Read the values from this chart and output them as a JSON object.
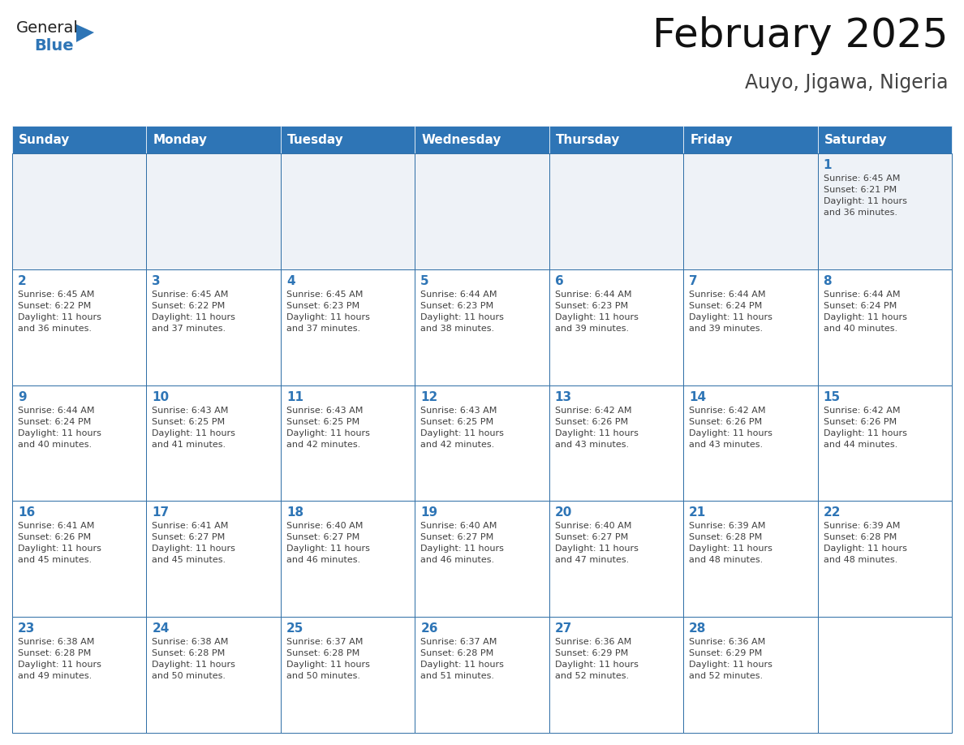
{
  "title": "February 2025",
  "subtitle": "Auyo, Jigawa, Nigeria",
  "header_bg_color": "#2E75B6",
  "header_text_color": "#FFFFFF",
  "cell_border_color": "#2E6EA6",
  "day_number_color": "#2E75B6",
  "info_text_color": "#404040",
  "bg_color": "#FFFFFF",
  "row1_bg_color": "#EEF2F7",
  "days_of_week": [
    "Sunday",
    "Monday",
    "Tuesday",
    "Wednesday",
    "Thursday",
    "Friday",
    "Saturday"
  ],
  "weeks": [
    [
      {
        "day": "",
        "info": ""
      },
      {
        "day": "",
        "info": ""
      },
      {
        "day": "",
        "info": ""
      },
      {
        "day": "",
        "info": ""
      },
      {
        "day": "",
        "info": ""
      },
      {
        "day": "",
        "info": ""
      },
      {
        "day": "1",
        "info": "Sunrise: 6:45 AM\nSunset: 6:21 PM\nDaylight: 11 hours\nand 36 minutes."
      }
    ],
    [
      {
        "day": "2",
        "info": "Sunrise: 6:45 AM\nSunset: 6:22 PM\nDaylight: 11 hours\nand 36 minutes."
      },
      {
        "day": "3",
        "info": "Sunrise: 6:45 AM\nSunset: 6:22 PM\nDaylight: 11 hours\nand 37 minutes."
      },
      {
        "day": "4",
        "info": "Sunrise: 6:45 AM\nSunset: 6:23 PM\nDaylight: 11 hours\nand 37 minutes."
      },
      {
        "day": "5",
        "info": "Sunrise: 6:44 AM\nSunset: 6:23 PM\nDaylight: 11 hours\nand 38 minutes."
      },
      {
        "day": "6",
        "info": "Sunrise: 6:44 AM\nSunset: 6:23 PM\nDaylight: 11 hours\nand 39 minutes."
      },
      {
        "day": "7",
        "info": "Sunrise: 6:44 AM\nSunset: 6:24 PM\nDaylight: 11 hours\nand 39 minutes."
      },
      {
        "day": "8",
        "info": "Sunrise: 6:44 AM\nSunset: 6:24 PM\nDaylight: 11 hours\nand 40 minutes."
      }
    ],
    [
      {
        "day": "9",
        "info": "Sunrise: 6:44 AM\nSunset: 6:24 PM\nDaylight: 11 hours\nand 40 minutes."
      },
      {
        "day": "10",
        "info": "Sunrise: 6:43 AM\nSunset: 6:25 PM\nDaylight: 11 hours\nand 41 minutes."
      },
      {
        "day": "11",
        "info": "Sunrise: 6:43 AM\nSunset: 6:25 PM\nDaylight: 11 hours\nand 42 minutes."
      },
      {
        "day": "12",
        "info": "Sunrise: 6:43 AM\nSunset: 6:25 PM\nDaylight: 11 hours\nand 42 minutes."
      },
      {
        "day": "13",
        "info": "Sunrise: 6:42 AM\nSunset: 6:26 PM\nDaylight: 11 hours\nand 43 minutes."
      },
      {
        "day": "14",
        "info": "Sunrise: 6:42 AM\nSunset: 6:26 PM\nDaylight: 11 hours\nand 43 minutes."
      },
      {
        "day": "15",
        "info": "Sunrise: 6:42 AM\nSunset: 6:26 PM\nDaylight: 11 hours\nand 44 minutes."
      }
    ],
    [
      {
        "day": "16",
        "info": "Sunrise: 6:41 AM\nSunset: 6:26 PM\nDaylight: 11 hours\nand 45 minutes."
      },
      {
        "day": "17",
        "info": "Sunrise: 6:41 AM\nSunset: 6:27 PM\nDaylight: 11 hours\nand 45 minutes."
      },
      {
        "day": "18",
        "info": "Sunrise: 6:40 AM\nSunset: 6:27 PM\nDaylight: 11 hours\nand 46 minutes."
      },
      {
        "day": "19",
        "info": "Sunrise: 6:40 AM\nSunset: 6:27 PM\nDaylight: 11 hours\nand 46 minutes."
      },
      {
        "day": "20",
        "info": "Sunrise: 6:40 AM\nSunset: 6:27 PM\nDaylight: 11 hours\nand 47 minutes."
      },
      {
        "day": "21",
        "info": "Sunrise: 6:39 AM\nSunset: 6:28 PM\nDaylight: 11 hours\nand 48 minutes."
      },
      {
        "day": "22",
        "info": "Sunrise: 6:39 AM\nSunset: 6:28 PM\nDaylight: 11 hours\nand 48 minutes."
      }
    ],
    [
      {
        "day": "23",
        "info": "Sunrise: 6:38 AM\nSunset: 6:28 PM\nDaylight: 11 hours\nand 49 minutes."
      },
      {
        "day": "24",
        "info": "Sunrise: 6:38 AM\nSunset: 6:28 PM\nDaylight: 11 hours\nand 50 minutes."
      },
      {
        "day": "25",
        "info": "Sunrise: 6:37 AM\nSunset: 6:28 PM\nDaylight: 11 hours\nand 50 minutes."
      },
      {
        "day": "26",
        "info": "Sunrise: 6:37 AM\nSunset: 6:28 PM\nDaylight: 11 hours\nand 51 minutes."
      },
      {
        "day": "27",
        "info": "Sunrise: 6:36 AM\nSunset: 6:29 PM\nDaylight: 11 hours\nand 52 minutes."
      },
      {
        "day": "28",
        "info": "Sunrise: 6:36 AM\nSunset: 6:29 PM\nDaylight: 11 hours\nand 52 minutes."
      },
      {
        "day": "",
        "info": ""
      }
    ]
  ]
}
